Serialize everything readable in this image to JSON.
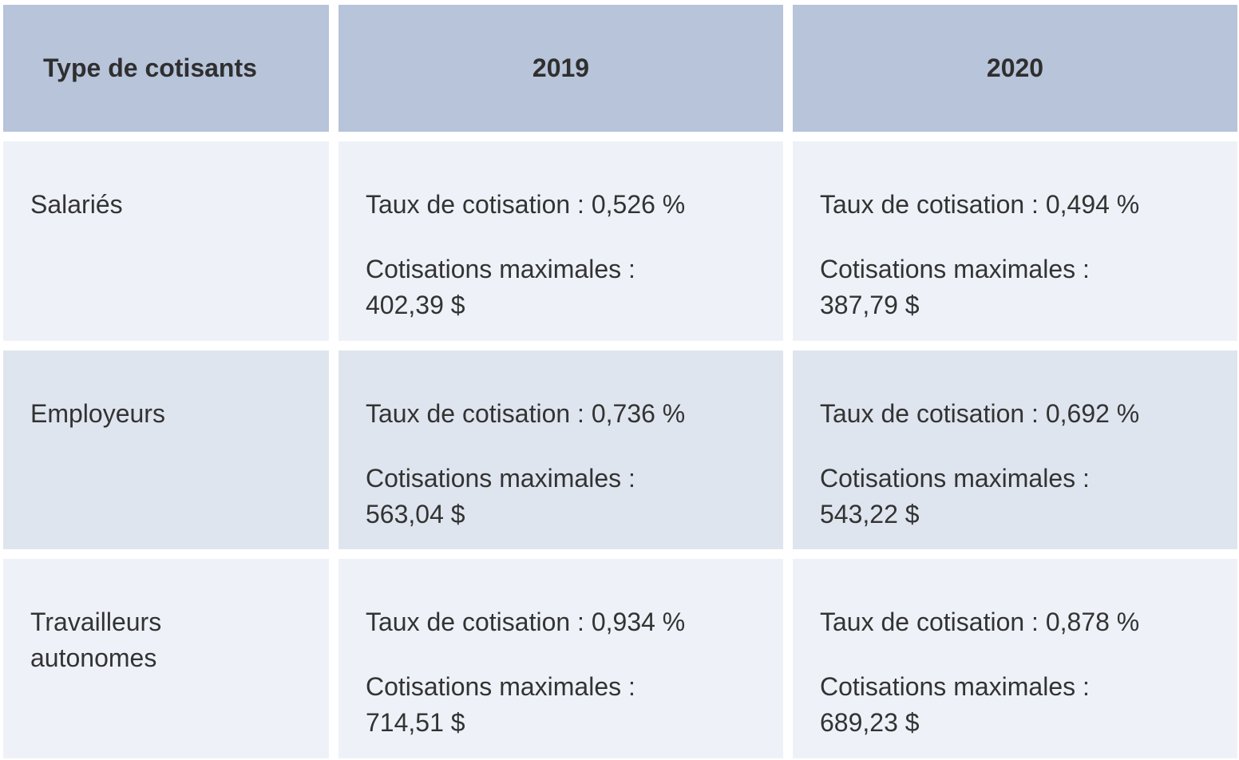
{
  "table": {
    "headers": [
      "Type de cotisants",
      "2019",
      "2020"
    ],
    "rows": [
      {
        "type_lines": [
          "Salariés"
        ],
        "y2019": {
          "rate": "Taux de cotisation : 0,526 %",
          "max_label": "Cotisations maximales :",
          "max_value": "402,39 $"
        },
        "y2020": {
          "rate": "Taux de cotisation : 0,494 %",
          "max_label": "Cotisations maximales :",
          "max_value": "387,79 $"
        }
      },
      {
        "type_lines": [
          "Employeurs"
        ],
        "y2019": {
          "rate": "Taux de cotisation : 0,736 %",
          "max_label": "Cotisations maximales :",
          "max_value": "563,04 $"
        },
        "y2020": {
          "rate": "Taux de cotisation : 0,692 %",
          "max_label": "Cotisations maximales :",
          "max_value": "543,22 $"
        }
      },
      {
        "type_lines": [
          "Travailleurs",
          "autonomes"
        ],
        "y2019": {
          "rate": "Taux de cotisation : 0,934 %",
          "max_label": "Cotisations maximales :",
          "max_value": "714,51 $"
        },
        "y2020": {
          "rate": "Taux de cotisation : 0,878 %",
          "max_label": "Cotisations maximales :",
          "max_value": "689,23 $"
        }
      }
    ]
  },
  "colors": {
    "header_bg": "#b7c4da",
    "row_light_bg": "#eef2f8",
    "row_dark_bg": "#dfe5ef",
    "text": "#333333"
  }
}
